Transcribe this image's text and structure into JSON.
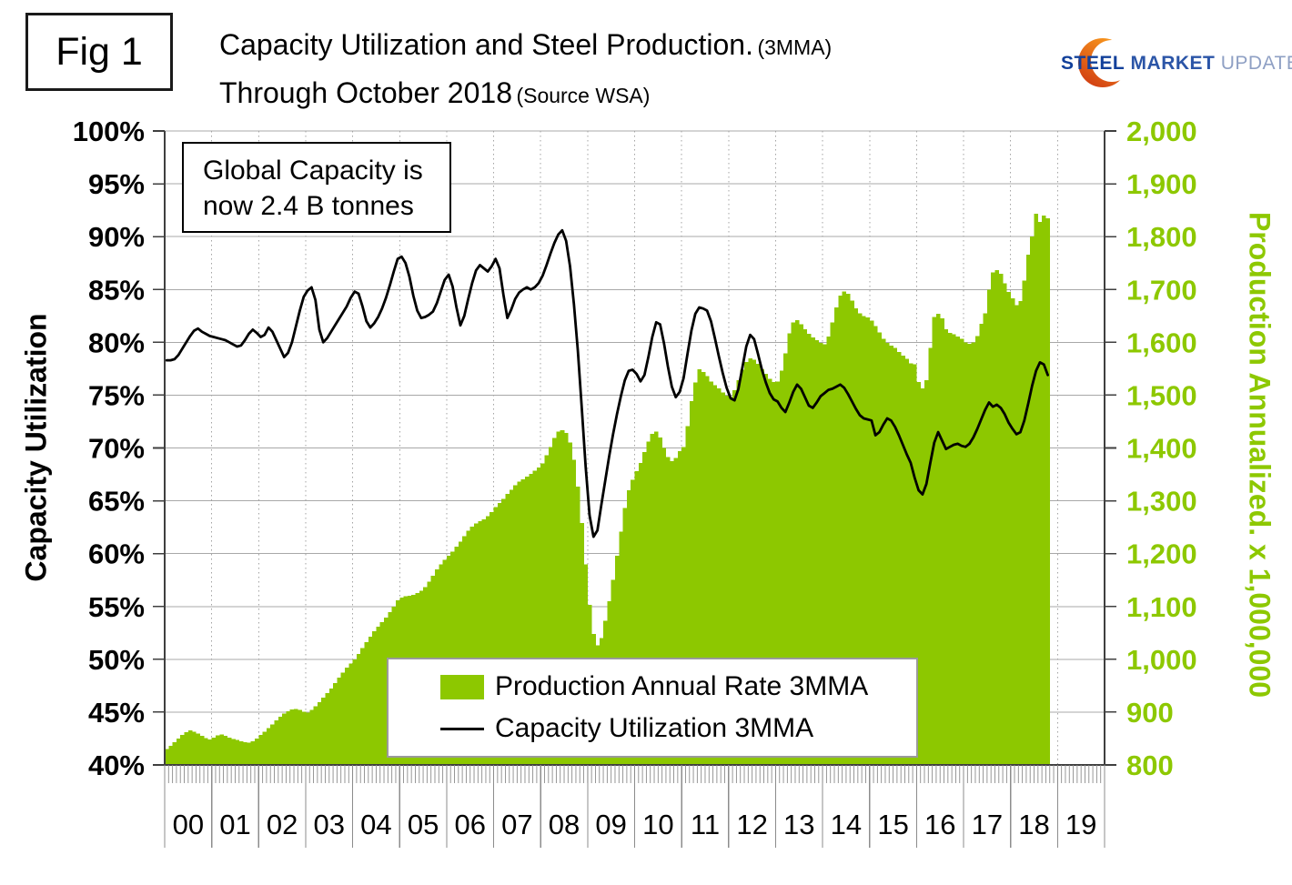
{
  "header": {
    "fig_label": "Fig 1",
    "title_main": "Capacity Utilization and Steel Production.",
    "title_note": "(3MMA)",
    "title_line2": "Through October 2018",
    "title_line2_note": "(Source WSA)"
  },
  "logo": {
    "word1": "STEEL",
    "word2": "MARKET",
    "word3": "UPDATE"
  },
  "annotation": {
    "line1": "Global Capacity is",
    "line2": "now 2.4 B tonnes"
  },
  "legend": {
    "items": [
      {
        "label": "Production Annual Rate 3MMA",
        "type": "bar",
        "color": "#8dc800"
      },
      {
        "label": "Capacity Utilization 3MMA",
        "type": "line",
        "color": "#000000"
      }
    ]
  },
  "chart_data": {
    "type": "combo",
    "title": "Capacity Utilization and Steel Production. (3MMA) Through October 2018 (Source WSA)",
    "x": {
      "frequency": "monthly",
      "start": "2000-01",
      "end": "2018-10",
      "axis_years": [
        2000,
        2020
      ],
      "year_labels": [
        "00",
        "01",
        "02",
        "03",
        "04",
        "05",
        "06",
        "07",
        "08",
        "09",
        "10",
        "11",
        "12",
        "13",
        "14",
        "15",
        "16",
        "17",
        "18",
        "19"
      ]
    },
    "y_left": {
      "title": "Capacity Utilization",
      "unit": "%",
      "min": 40,
      "max": 100,
      "tick_values": [
        100,
        95,
        90,
        85,
        80,
        75,
        70,
        65,
        60,
        55,
        50,
        45,
        40
      ],
      "tick_labels": [
        "100%",
        "95%",
        "90%",
        "85%",
        "80%",
        "75%",
        "70%",
        "65%",
        "60%",
        "55%",
        "50%",
        "45%",
        "40%"
      ]
    },
    "y_right": {
      "title": "Production Annualized. x 1,000,000",
      "min": 800,
      "max": 2000,
      "tick_values": [
        2000,
        1900,
        1800,
        1700,
        1600,
        1500,
        1400,
        1300,
        1200,
        1100,
        1000,
        900,
        800
      ],
      "tick_labels": [
        "2,000",
        "1,900",
        "1,800",
        "1,700",
        "1,600",
        "1,500",
        "1,400",
        "1,300",
        "1,200",
        "1,100",
        "1,000",
        "900",
        "800"
      ],
      "color": "#8dc800"
    },
    "grid": {
      "horizontal": true,
      "vertical_yearly_dotted": true
    },
    "legend_position": "bottom-center-inside",
    "series": [
      {
        "name": "Production Annual Rate 3MMA",
        "type": "bar",
        "axis": "right",
        "color": "#8dc800",
        "values": [
          830,
          836,
          843,
          850,
          857,
          862,
          865,
          863,
          859,
          855,
          851,
          848,
          852,
          856,
          858,
          855,
          852,
          849,
          847,
          845,
          843,
          842,
          845,
          850,
          857,
          863,
          870,
          877,
          884,
          891,
          897,
          902,
          905,
          906,
          904,
          901,
          899,
          904,
          911,
          919,
          927,
          936,
          945,
          955,
          965,
          975,
          984,
          992,
          1000,
          1010,
          1021,
          1032,
          1043,
          1053,
          1062,
          1070,
          1079,
          1089,
          1100,
          1112,
          1117,
          1119,
          1120,
          1122,
          1125,
          1130,
          1137,
          1147,
          1158,
          1170,
          1180,
          1188,
          1196,
          1204,
          1213,
          1223,
          1233,
          1243,
          1251,
          1257,
          1261,
          1265,
          1271,
          1279,
          1288,
          1296,
          1304,
          1313,
          1321,
          1329,
          1336,
          1341,
          1346,
          1351,
          1357,
          1363,
          1371,
          1386,
          1402,
          1419,
          1431,
          1434,
          1428,
          1410,
          1378,
          1327,
          1258,
          1180,
          1103,
          1048,
          1026,
          1040,
          1073,
          1110,
          1150,
          1196,
          1242,
          1286,
          1320,
          1340,
          1356,
          1372,
          1392,
          1412,
          1427,
          1431,
          1420,
          1400,
          1383,
          1375,
          1381,
          1394,
          1402,
          1441,
          1489,
          1524,
          1549,
          1544,
          1536,
          1526,
          1519,
          1513,
          1505,
          1499,
          1496,
          1509,
          1528,
          1548,
          1563,
          1570,
          1567,
          1559,
          1549,
          1540,
          1531,
          1525,
          1526,
          1546,
          1579,
          1617,
          1638,
          1642,
          1634,
          1625,
          1616,
          1609,
          1604,
          1599,
          1596,
          1611,
          1638,
          1666,
          1688,
          1696,
          1692,
          1679,
          1664,
          1655,
          1650,
          1647,
          1641,
          1631,
          1619,
          1607,
          1599,
          1594,
          1589,
          1582,
          1575,
          1569,
          1560,
          1558,
          1525,
          1513,
          1528,
          1589,
          1648,
          1654,
          1645,
          1625,
          1618,
          1615,
          1611,
          1607,
          1600,
          1597,
          1600,
          1612,
          1635,
          1655,
          1700,
          1732,
          1737,
          1730,
          1712,
          1695,
          1683,
          1670,
          1678,
          1717,
          1766,
          1800,
          1843,
          1828,
          1840,
          1835
        ]
      },
      {
        "name": "Capacity Utilization 3MMA",
        "type": "line",
        "axis": "left",
        "color": "#000000",
        "values": [
          78.3,
          78.3,
          78.4,
          78.8,
          79.4,
          80.0,
          80.6,
          81.1,
          81.3,
          81.0,
          80.8,
          80.6,
          80.5,
          80.4,
          80.3,
          80.2,
          80.0,
          79.8,
          79.6,
          79.7,
          80.2,
          80.8,
          81.2,
          80.9,
          80.5,
          80.7,
          81.4,
          81.0,
          80.2,
          79.4,
          78.6,
          79.0,
          80.0,
          81.5,
          83.0,
          84.3,
          84.9,
          85.2,
          84.0,
          81.2,
          80.0,
          80.4,
          81.0,
          81.6,
          82.2,
          82.8,
          83.4,
          84.2,
          84.8,
          84.6,
          83.4,
          82.0,
          81.4,
          81.8,
          82.4,
          83.2,
          84.2,
          85.4,
          86.7,
          87.9,
          88.1,
          87.5,
          86.2,
          84.4,
          83.0,
          82.3,
          82.4,
          82.6,
          82.9,
          83.7,
          84.8,
          85.9,
          86.4,
          85.3,
          83.3,
          81.6,
          82.5,
          84.1,
          85.6,
          86.8,
          87.3,
          87.0,
          86.7,
          87.2,
          87.9,
          87.0,
          84.5,
          82.3,
          83.1,
          84.1,
          84.7,
          85.0,
          85.2,
          85.0,
          85.2,
          85.6,
          86.3,
          87.3,
          88.4,
          89.4,
          90.2,
          90.6,
          89.6,
          87.2,
          83.6,
          79.2,
          73.8,
          68.2,
          63.6,
          61.6,
          62.2,
          64.6,
          66.9,
          69.2,
          71.3,
          73.2,
          74.9,
          76.4,
          77.3,
          77.4,
          77.0,
          76.3,
          76.9,
          78.6,
          80.5,
          81.9,
          81.7,
          79.9,
          77.7,
          75.8,
          74.8,
          75.3,
          76.6,
          78.9,
          81.1,
          82.7,
          83.3,
          83.2,
          83.0,
          82.0,
          80.4,
          78.7,
          77.1,
          75.7,
          74.7,
          74.5,
          75.6,
          77.6,
          79.6,
          80.7,
          80.3,
          78.9,
          77.4,
          76.2,
          75.2,
          74.6,
          74.4,
          73.8,
          73.4,
          74.3,
          75.3,
          76.0,
          75.6,
          74.8,
          74.0,
          73.8,
          74.3,
          74.9,
          75.2,
          75.5,
          75.6,
          75.8,
          76.0,
          75.7,
          75.1,
          74.4,
          73.7,
          73.1,
          72.8,
          72.7,
          72.6,
          71.2,
          71.5,
          72.2,
          72.8,
          72.6,
          72.0,
          71.2,
          70.3,
          69.4,
          68.6,
          67.2,
          66.0,
          65.6,
          66.6,
          68.6,
          70.5,
          71.5,
          70.7,
          69.9,
          70.1,
          70.3,
          70.4,
          70.2,
          70.1,
          70.4,
          71.0,
          71.8,
          72.7,
          73.6,
          74.3,
          73.9,
          74.1,
          73.8,
          73.2,
          72.4,
          71.8,
          71.3,
          71.5,
          72.6,
          74.2,
          75.9,
          77.3,
          78.1,
          77.9,
          76.9
        ]
      }
    ]
  }
}
